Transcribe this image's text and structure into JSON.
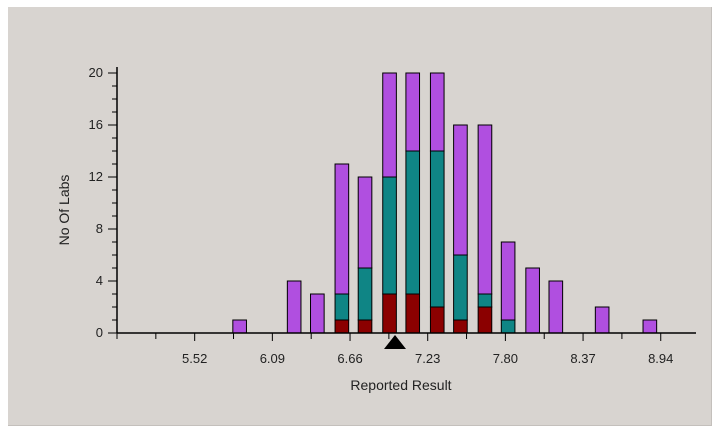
{
  "chart_data": {
    "type": "bar",
    "stacked": true,
    "xlabel": "Reported Result",
    "ylabel": "No Of Labs",
    "ylim": [
      0,
      20
    ],
    "yticks": [
      0,
      4,
      8,
      12,
      16,
      20
    ],
    "xlim": [
      4.95,
      9.14
    ],
    "xticks": [
      5.52,
      6.09,
      6.66,
      7.23,
      7.8,
      8.37,
      8.94
    ],
    "xtick_labels": [
      "5.52",
      "6.09",
      "6.66",
      "7.23",
      "7.80",
      "8.37",
      "8.94"
    ],
    "bin_width": 0.1,
    "marker_value": 6.99,
    "grid": false,
    "legend": "none",
    "bins": [
      5.85,
      6.25,
      6.42,
      6.6,
      6.77,
      6.95,
      7.12,
      7.3,
      7.47,
      7.65,
      7.82,
      8.0,
      8.17,
      8.51,
      8.86
    ],
    "series": [
      {
        "color": "#8b0000",
        "values": [
          0,
          0,
          0,
          1,
          1,
          3,
          3,
          2,
          1,
          2,
          0,
          0,
          0,
          0,
          0
        ]
      },
      {
        "color": "#0f8585",
        "values": [
          0,
          0,
          0,
          2,
          4,
          9,
          11,
          12,
          5,
          1,
          1,
          0,
          0,
          0,
          0
        ]
      },
      {
        "color": "#b04fe0",
        "values": [
          1,
          4,
          3,
          10,
          7,
          8,
          6,
          6,
          10,
          13,
          6,
          5,
          4,
          2,
          1
        ]
      }
    ]
  }
}
